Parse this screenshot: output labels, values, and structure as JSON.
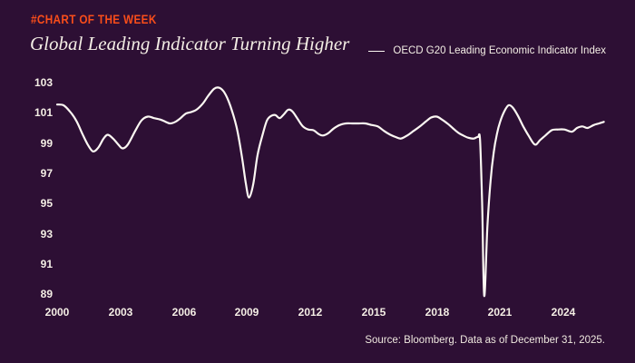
{
  "header": {
    "kicker": "#CHART OF THE WEEK",
    "title": "Global Leading Indicator Turning Higher"
  },
  "legend": {
    "label": "OECD G20 Leading Economic Indicator Index"
  },
  "source": {
    "text": "Source: Bloomberg. Data as of December 31, 2025."
  },
  "colors": {
    "background": "#2d0f34",
    "accent_orange": "#f94d1a",
    "line": "#fbf7f2",
    "text": "#f4eee5"
  },
  "chart_data": {
    "type": "line",
    "title": "Global Leading Indicator Turning Higher",
    "xlabel": "",
    "ylabel": "",
    "xlim": [
      2000,
      2026
    ],
    "ylim": [
      89,
      103
    ],
    "grid": false,
    "legend_position": "top-right",
    "x_ticks": [
      "2000",
      "2003",
      "2006",
      "2009",
      "2012",
      "2015",
      "2018",
      "2021",
      "2024"
    ],
    "y_ticks": [
      "103",
      "101",
      "99",
      "97",
      "95",
      "93",
      "91",
      "89"
    ],
    "series": [
      {
        "name": "OECD G20 Leading Economic Indicator Index",
        "x": [
          2000.0,
          2000.3,
          2000.6,
          2000.9,
          2001.2,
          2001.45,
          2001.7,
          2001.95,
          2002.2,
          2002.4,
          2002.65,
          2002.9,
          2003.1,
          2003.35,
          2003.7,
          2004.0,
          2004.3,
          2004.6,
          2004.9,
          2005.15,
          2005.35,
          2005.6,
          2005.85,
          2006.1,
          2006.35,
          2006.6,
          2006.9,
          2007.15,
          2007.45,
          2007.7,
          2007.95,
          2008.2,
          2008.5,
          2008.75,
          2008.95,
          2009.1,
          2009.3,
          2009.5,
          2009.75,
          2009.95,
          2010.15,
          2010.35,
          2010.55,
          2010.75,
          2010.95,
          2011.15,
          2011.4,
          2011.65,
          2011.9,
          2012.15,
          2012.4,
          2012.6,
          2012.85,
          2013.1,
          2013.4,
          2013.7,
          2014.0,
          2014.3,
          2014.6,
          2014.9,
          2015.2,
          2015.5,
          2015.8,
          2016.05,
          2016.3,
          2016.6,
          2016.9,
          2017.2,
          2017.5,
          2017.75,
          2018.0,
          2018.25,
          2018.5,
          2018.75,
          2019.0,
          2019.25,
          2019.5,
          2019.75,
          2019.95,
          2020.05,
          2020.15,
          2020.25,
          2020.4,
          2020.55,
          2020.7,
          2020.85,
          2021.0,
          2021.2,
          2021.4,
          2021.6,
          2021.85,
          2022.1,
          2022.35,
          2022.65,
          2022.9,
          2023.15,
          2023.45,
          2023.75,
          2024.05,
          2024.4,
          2024.65,
          2024.9,
          2025.15,
          2025.45,
          2025.7,
          2025.92
        ],
        "y": [
          101.55,
          101.5,
          101.1,
          100.5,
          99.6,
          98.9,
          98.45,
          98.7,
          99.3,
          99.55,
          99.3,
          98.9,
          98.65,
          98.9,
          99.8,
          100.5,
          100.75,
          100.65,
          100.55,
          100.4,
          100.3,
          100.4,
          100.65,
          100.95,
          101.05,
          101.2,
          101.6,
          102.1,
          102.6,
          102.65,
          102.3,
          101.5,
          100.1,
          98.2,
          96.3,
          95.4,
          96.3,
          98.2,
          99.6,
          100.5,
          100.8,
          100.85,
          100.65,
          100.9,
          101.2,
          101.1,
          100.6,
          100.1,
          99.9,
          99.85,
          99.6,
          99.5,
          99.65,
          99.95,
          100.2,
          100.3,
          100.3,
          100.3,
          100.3,
          100.2,
          100.1,
          99.8,
          99.55,
          99.4,
          99.3,
          99.5,
          99.8,
          100.1,
          100.45,
          100.7,
          100.75,
          100.55,
          100.3,
          100.0,
          99.7,
          99.5,
          99.35,
          99.3,
          99.4,
          99.2,
          95.0,
          88.9,
          93.5,
          96.5,
          98.4,
          99.6,
          100.4,
          101.1,
          101.5,
          101.35,
          100.8,
          100.1,
          99.5,
          98.9,
          99.2,
          99.5,
          99.85,
          99.9,
          99.9,
          99.75,
          100.0,
          100.1,
          100.0,
          100.2,
          100.3,
          100.4
        ]
      }
    ]
  }
}
